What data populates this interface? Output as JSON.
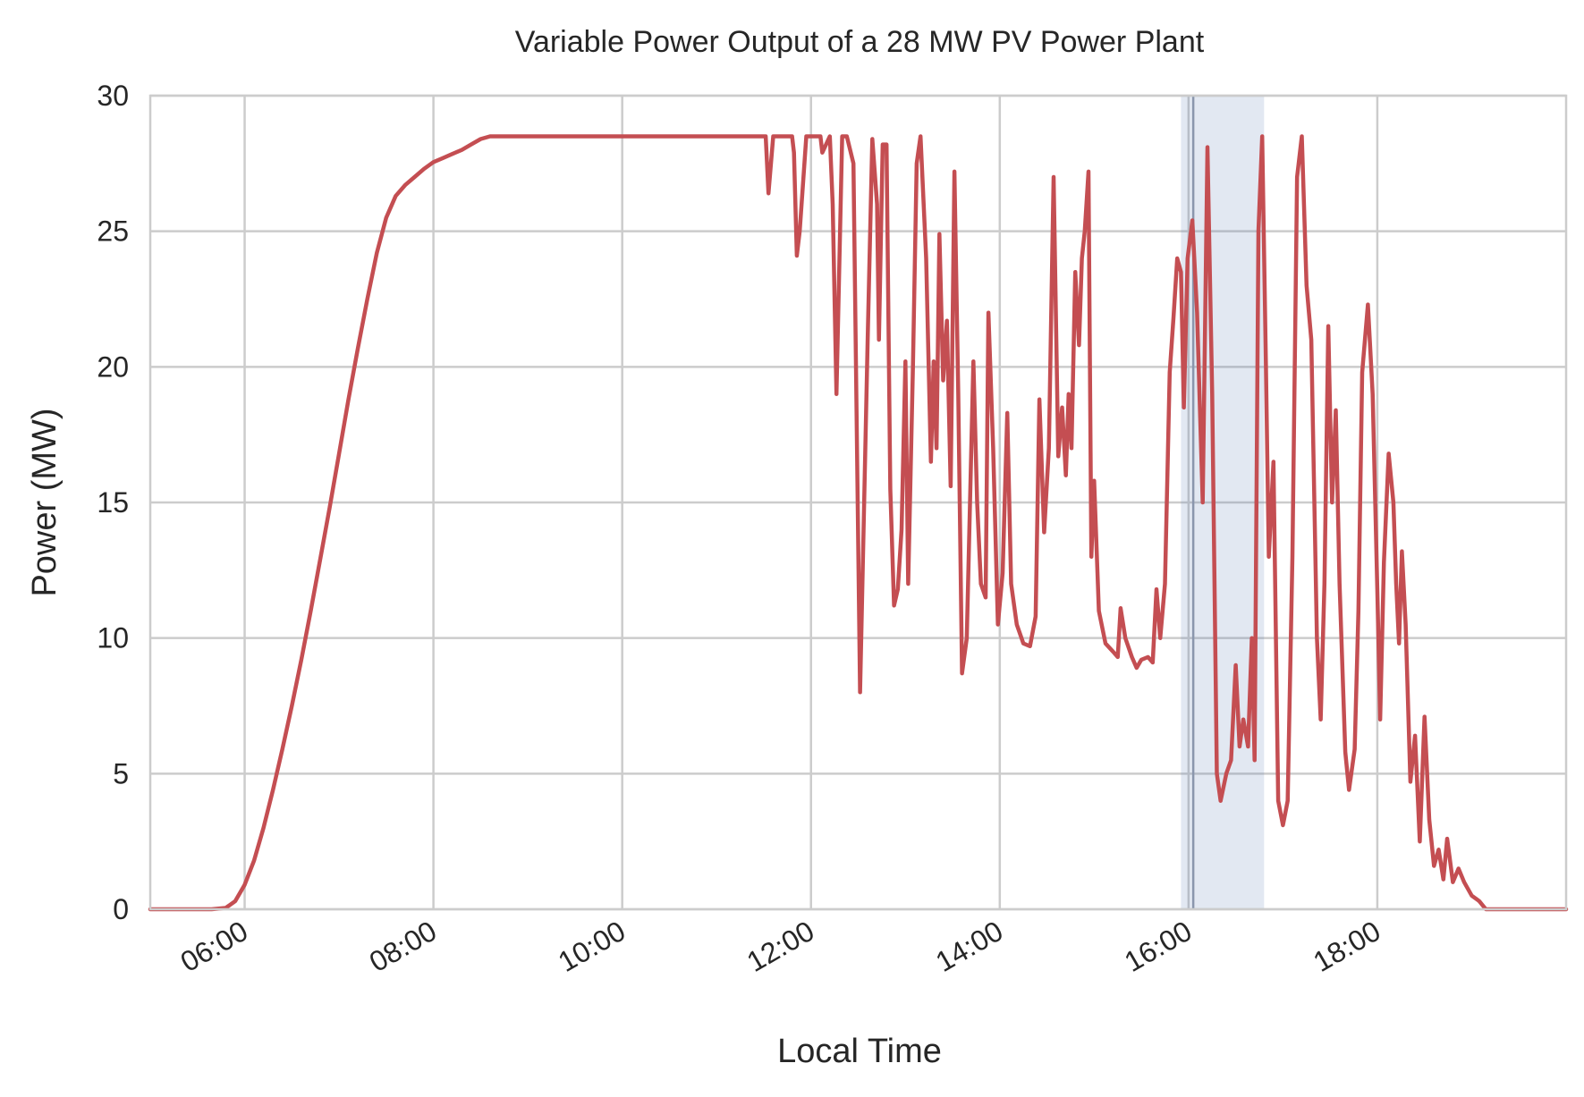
{
  "chart_data": {
    "type": "line",
    "title": "Variable Power Output of a 28 MW PV Power Plant",
    "xlabel": "Local Time",
    "ylabel": "Power (MW)",
    "x_unit": "hour of day",
    "xlim": [
      5.0,
      20.0
    ],
    "ylim": [
      0,
      30
    ],
    "yticks": [
      0,
      5,
      10,
      15,
      20,
      25,
      30
    ],
    "xticks": [
      {
        "value": 6,
        "label": "06:00"
      },
      {
        "value": 8,
        "label": "08:00"
      },
      {
        "value": 10,
        "label": "10:00"
      },
      {
        "value": 12,
        "label": "12:00"
      },
      {
        "value": 14,
        "label": "14:00"
      },
      {
        "value": 16,
        "label": "16:00"
      },
      {
        "value": 18,
        "label": "18:00"
      }
    ],
    "grid": true,
    "colors": {
      "series": "#c44e52",
      "highlight": "#4c72b0",
      "grid": "#cccccc",
      "text": "#262626"
    },
    "highlight_span": {
      "x_start": 15.92,
      "x_end": 16.8,
      "marker_x": 16.05
    },
    "series": [
      {
        "points": [
          [
            5.0,
            0
          ],
          [
            5.25,
            0
          ],
          [
            5.3,
            0
          ],
          [
            5.65,
            0
          ],
          [
            5.8,
            0.05
          ],
          [
            5.9,
            0.3
          ],
          [
            6.0,
            0.9
          ],
          [
            6.1,
            1.8
          ],
          [
            6.2,
            3.0
          ],
          [
            6.3,
            4.4
          ],
          [
            6.4,
            5.9
          ],
          [
            6.5,
            7.5
          ],
          [
            6.6,
            9.2
          ],
          [
            6.7,
            11.0
          ],
          [
            6.8,
            12.9
          ],
          [
            6.9,
            14.8
          ],
          [
            7.0,
            16.8
          ],
          [
            7.1,
            18.8
          ],
          [
            7.2,
            20.7
          ],
          [
            7.3,
            22.5
          ],
          [
            7.4,
            24.2
          ],
          [
            7.5,
            25.5
          ],
          [
            7.6,
            26.3
          ],
          [
            7.7,
            26.7
          ],
          [
            7.8,
            27.0
          ],
          [
            7.9,
            27.3
          ],
          [
            8.0,
            27.55
          ],
          [
            8.1,
            27.7
          ],
          [
            8.2,
            27.85
          ],
          [
            8.3,
            28.0
          ],
          [
            8.4,
            28.2
          ],
          [
            8.5,
            28.4
          ],
          [
            8.6,
            28.5
          ],
          [
            9.0,
            28.5
          ],
          [
            10.0,
            28.5
          ],
          [
            11.0,
            28.5
          ],
          [
            11.52,
            28.5
          ],
          [
            11.55,
            26.4
          ],
          [
            11.6,
            28.5
          ],
          [
            11.8,
            28.5
          ],
          [
            11.82,
            27.9
          ],
          [
            11.85,
            24.1
          ],
          [
            11.88,
            25.0
          ],
          [
            11.95,
            28.5
          ],
          [
            12.1,
            28.5
          ],
          [
            12.12,
            27.9
          ],
          [
            12.2,
            28.5
          ],
          [
            12.23,
            26.0
          ],
          [
            12.27,
            19.0
          ],
          [
            12.33,
            28.5
          ],
          [
            12.38,
            28.5
          ],
          [
            12.45,
            27.5
          ],
          [
            12.52,
            8.0
          ],
          [
            12.6,
            21.0
          ],
          [
            12.65,
            28.4
          ],
          [
            12.7,
            26.0
          ],
          [
            12.72,
            21.0
          ],
          [
            12.76,
            28.2
          ],
          [
            12.8,
            28.2
          ],
          [
            12.84,
            15.5
          ],
          [
            12.88,
            11.2
          ],
          [
            12.92,
            11.8
          ],
          [
            12.96,
            14.0
          ],
          [
            13.0,
            20.2
          ],
          [
            13.03,
            12.0
          ],
          [
            13.08,
            20.0
          ],
          [
            13.12,
            27.5
          ],
          [
            13.16,
            28.5
          ],
          [
            13.22,
            24.0
          ],
          [
            13.27,
            16.5
          ],
          [
            13.3,
            20.2
          ],
          [
            13.33,
            17.0
          ],
          [
            13.36,
            24.9
          ],
          [
            13.4,
            19.5
          ],
          [
            13.44,
            21.7
          ],
          [
            13.48,
            15.6
          ],
          [
            13.52,
            27.2
          ],
          [
            13.56,
            19.0
          ],
          [
            13.6,
            8.7
          ],
          [
            13.65,
            10.0
          ],
          [
            13.72,
            20.2
          ],
          [
            13.76,
            15.0
          ],
          [
            13.8,
            12.0
          ],
          [
            13.85,
            11.5
          ],
          [
            13.88,
            22.0
          ],
          [
            13.93,
            17.0
          ],
          [
            13.98,
            10.5
          ],
          [
            14.03,
            12.4
          ],
          [
            14.08,
            18.3
          ],
          [
            14.12,
            12.0
          ],
          [
            14.18,
            10.5
          ],
          [
            14.25,
            9.8
          ],
          [
            14.32,
            9.7
          ],
          [
            14.38,
            10.8
          ],
          [
            14.42,
            18.8
          ],
          [
            14.47,
            13.9
          ],
          [
            14.52,
            17.0
          ],
          [
            14.57,
            27.0
          ],
          [
            14.62,
            16.7
          ],
          [
            14.66,
            18.5
          ],
          [
            14.7,
            16.0
          ],
          [
            14.73,
            19.0
          ],
          [
            14.76,
            17.0
          ],
          [
            14.8,
            23.5
          ],
          [
            14.84,
            20.8
          ],
          [
            14.87,
            24.0
          ],
          [
            14.9,
            25.0
          ],
          [
            14.94,
            27.2
          ],
          [
            14.97,
            13.0
          ],
          [
            15.0,
            15.8
          ],
          [
            15.05,
            11.0
          ],
          [
            15.12,
            9.8
          ],
          [
            15.2,
            9.5
          ],
          [
            15.25,
            9.3
          ],
          [
            15.28,
            11.1
          ],
          [
            15.33,
            10.0
          ],
          [
            15.4,
            9.3
          ],
          [
            15.45,
            8.9
          ],
          [
            15.5,
            9.2
          ],
          [
            15.57,
            9.3
          ],
          [
            15.62,
            9.1
          ],
          [
            15.66,
            11.8
          ],
          [
            15.7,
            10.0
          ],
          [
            15.75,
            12.0
          ],
          [
            15.8,
            19.8
          ],
          [
            15.84,
            21.8
          ],
          [
            15.88,
            24.0
          ],
          [
            15.92,
            23.5
          ],
          [
            15.95,
            18.5
          ],
          [
            15.99,
            24.0
          ],
          [
            16.04,
            25.4
          ],
          [
            16.09,
            22.0
          ],
          [
            16.15,
            15.0
          ],
          [
            16.2,
            28.1
          ],
          [
            16.25,
            19.0
          ],
          [
            16.3,
            5.0
          ],
          [
            16.34,
            4.0
          ],
          [
            16.4,
            5.0
          ],
          [
            16.45,
            5.5
          ],
          [
            16.5,
            9.0
          ],
          [
            16.54,
            6.0
          ],
          [
            16.58,
            7.0
          ],
          [
            16.63,
            6.0
          ],
          [
            16.67,
            10.0
          ],
          [
            16.7,
            5.5
          ],
          [
            16.74,
            25.0
          ],
          [
            16.78,
            28.5
          ],
          [
            16.82,
            20.0
          ],
          [
            16.85,
            13.0
          ],
          [
            16.9,
            16.5
          ],
          [
            16.95,
            4.0
          ],
          [
            17.0,
            3.1
          ],
          [
            17.05,
            4.0
          ],
          [
            17.1,
            13.0
          ],
          [
            17.15,
            27.0
          ],
          [
            17.2,
            28.5
          ],
          [
            17.25,
            23.0
          ],
          [
            17.3,
            21.0
          ],
          [
            17.36,
            10.0
          ],
          [
            17.4,
            7.0
          ],
          [
            17.44,
            12.0
          ],
          [
            17.48,
            21.5
          ],
          [
            17.52,
            15.0
          ],
          [
            17.56,
            18.4
          ],
          [
            17.6,
            12.0
          ],
          [
            17.66,
            5.8
          ],
          [
            17.7,
            4.4
          ],
          [
            17.76,
            5.9
          ],
          [
            17.8,
            11.0
          ],
          [
            17.84,
            19.8
          ],
          [
            17.9,
            22.3
          ],
          [
            17.95,
            19.0
          ],
          [
            18.0,
            11.8
          ],
          [
            18.03,
            7.0
          ],
          [
            18.07,
            12.8
          ],
          [
            18.12,
            16.8
          ],
          [
            18.17,
            15.0
          ],
          [
            18.2,
            12.0
          ],
          [
            18.23,
            9.8
          ],
          [
            18.26,
            13.2
          ],
          [
            18.3,
            10.5
          ],
          [
            18.35,
            4.7
          ],
          [
            18.4,
            6.4
          ],
          [
            18.45,
            2.5
          ],
          [
            18.5,
            7.1
          ],
          [
            18.55,
            3.3
          ],
          [
            18.6,
            1.6
          ],
          [
            18.65,
            2.2
          ],
          [
            18.7,
            1.1
          ],
          [
            18.74,
            2.6
          ],
          [
            18.8,
            1.0
          ],
          [
            18.86,
            1.5
          ],
          [
            18.92,
            1.0
          ],
          [
            19.0,
            0.5
          ],
          [
            19.08,
            0.3
          ],
          [
            19.15,
            0
          ],
          [
            19.3,
            0
          ],
          [
            19.6,
            0
          ],
          [
            20.0,
            0
          ]
        ]
      }
    ]
  }
}
